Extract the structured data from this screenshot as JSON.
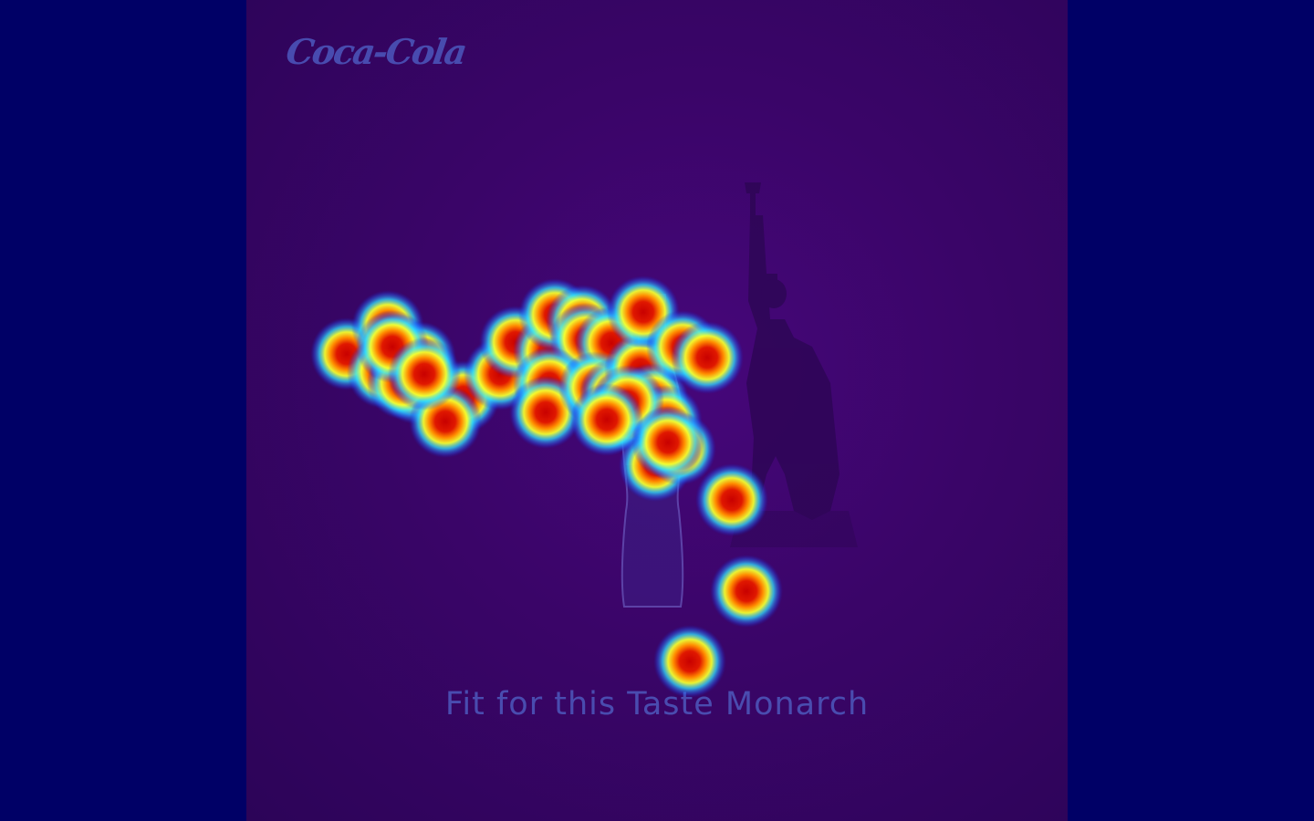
{
  "ad": {
    "brand_logo_text": "Coca-Cola",
    "tagline": "Fit for this Taste Monarch"
  },
  "colors": {
    "outer_background": "#000066",
    "ad_background": "#3a0568",
    "text_tint": "#4c54b8",
    "heat_core": "#d40000",
    "heat_mid": "#ff9a00",
    "heat_outer": "#24d0ff"
  },
  "icons": {
    "statue": "statue-of-liberty-silhouette",
    "bottle": "coca-cola-bottle"
  },
  "heatmap": {
    "fixation_count": 38
  }
}
